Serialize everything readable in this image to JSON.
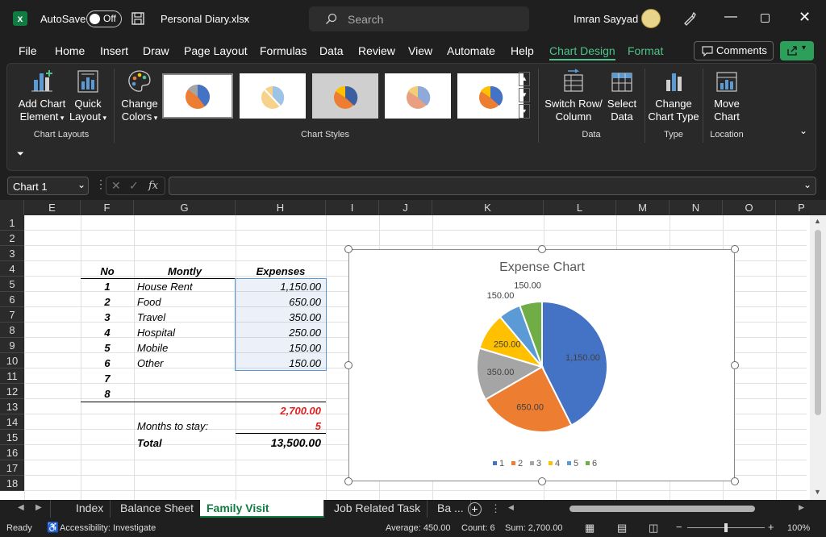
{
  "titlebar": {
    "autosave_label": "AutoSave",
    "autosave_state": "Off",
    "file_name": "Personal Diary.xlsx",
    "search_placeholder": "Search",
    "user_name": "Imran Sayyad"
  },
  "menu": {
    "items": [
      "File",
      "Home",
      "Insert",
      "Draw",
      "Page Layout",
      "Formulas",
      "Data",
      "Review",
      "View",
      "Automate",
      "Help",
      "Chart Design",
      "Format"
    ],
    "active": "Chart Design",
    "comments_label": "Comments"
  },
  "ribbon": {
    "add_chart_element": [
      "Add Chart",
      "Element"
    ],
    "quick_layout": [
      "Quick",
      "Layout"
    ],
    "change_colors": [
      "Change",
      "Colors"
    ],
    "switch_row_col": [
      "Switch Row/",
      "Column"
    ],
    "select_data": [
      "Select",
      "Data"
    ],
    "change_chart_type": [
      "Change",
      "Chart Type"
    ],
    "move_chart": [
      "Move",
      "Chart"
    ],
    "groups": {
      "chart_layouts": "Chart Layouts",
      "chart_styles": "Chart Styles",
      "data": "Data",
      "type": "Type",
      "location": "Location"
    }
  },
  "formulabar": {
    "name_box": "Chart 1",
    "fx": "fx"
  },
  "columns": [
    "E",
    "F",
    "G",
    "H",
    "I",
    "J",
    "K",
    "L",
    "M",
    "N",
    "O",
    "P"
  ],
  "rows": [
    "1",
    "2",
    "3",
    "4",
    "5",
    "6",
    "7",
    "8",
    "9",
    "10",
    "11",
    "12",
    "13",
    "14",
    "15",
    "16",
    "17",
    "18"
  ],
  "table": {
    "headers": {
      "no": "No",
      "monthly": "Montly",
      "expenses": "Expenses"
    },
    "rows": [
      {
        "no": "1",
        "item": "House Rent",
        "amount": "1,150.00"
      },
      {
        "no": "2",
        "item": "Food",
        "amount": "650.00"
      },
      {
        "no": "3",
        "item": "Travel",
        "amount": "350.00"
      },
      {
        "no": "4",
        "item": "Hospital",
        "amount": "250.00"
      },
      {
        "no": "5",
        "item": "Mobile",
        "amount": "150.00"
      },
      {
        "no": "6",
        "item": "Other",
        "amount": "150.00"
      },
      {
        "no": "7",
        "item": "",
        "amount": ""
      },
      {
        "no": "8",
        "item": "",
        "amount": ""
      }
    ],
    "subtotal": "2,700.00",
    "months_label": "Months to stay:",
    "months_value": "5",
    "total_label": "Total",
    "total_value": "13,500.00"
  },
  "chart_data": {
    "type": "pie",
    "title": "Expense Chart",
    "categories": [
      "1",
      "2",
      "3",
      "4",
      "5",
      "6"
    ],
    "values": [
      1150,
      650,
      350,
      250,
      150,
      150
    ],
    "value_labels": [
      "1,150.00",
      "650.00",
      "350.00",
      "250.00",
      "150.00",
      "150.00"
    ],
    "colors": [
      "#4472c4",
      "#ed7d31",
      "#a5a5a5",
      "#ffc000",
      "#5b9bd5",
      "#70ad47"
    ],
    "legend": "bottom"
  },
  "sheet_tabs": [
    "Index",
    "Balance Sheet",
    "Family Visit Expenses",
    "Job Related Task",
    "Ba ..."
  ],
  "active_tab": "Family Visit Expenses",
  "status": {
    "ready": "Ready",
    "accessibility": "Accessibility: Investigate",
    "average": "Average:  450.00",
    "count": "Count: 6",
    "sum": "Sum:  2,700.00",
    "zoom": "100%"
  }
}
